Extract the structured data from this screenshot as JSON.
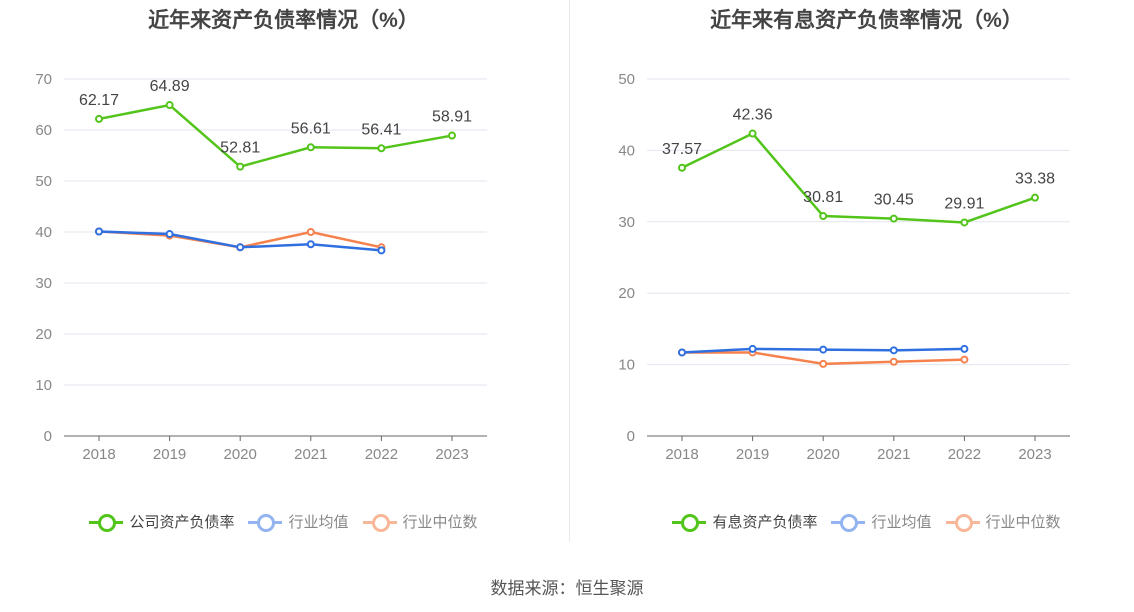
{
  "chart_data": [
    {
      "type": "line",
      "title": "近年来资产负债率情况（%）",
      "categories": [
        "2018",
        "2019",
        "2020",
        "2021",
        "2022",
        "2023"
      ],
      "ylim": [
        0,
        70
      ],
      "yticks": [
        0,
        10,
        20,
        30,
        40,
        50,
        60,
        70
      ],
      "grid": true,
      "legend": "bottom",
      "series": [
        {
          "name": "公司资产负债率",
          "color": "#52c41a",
          "values": [
            62.17,
            64.89,
            52.81,
            56.61,
            56.41,
            58.91
          ],
          "labels": true
        },
        {
          "name": "行业均值",
          "color": "#2f6fe0",
          "values": [
            40.1,
            39.6,
            37.0,
            37.6,
            36.4,
            null
          ]
        },
        {
          "name": "行业中位数",
          "color": "#f5814d",
          "values": [
            40.1,
            39.3,
            37.0,
            40.0,
            37.0,
            null
          ]
        }
      ]
    },
    {
      "type": "line",
      "title": "近年来有息资产负债率情况（%）",
      "categories": [
        "2018",
        "2019",
        "2020",
        "2021",
        "2022",
        "2023"
      ],
      "ylim": [
        0,
        50
      ],
      "yticks": [
        0,
        10,
        20,
        30,
        40,
        50
      ],
      "grid": true,
      "legend": "bottom",
      "series": [
        {
          "name": "有息资产负债率",
          "color": "#52c41a",
          "values": [
            37.57,
            42.36,
            30.81,
            30.45,
            29.91,
            33.38
          ],
          "labels": true
        },
        {
          "name": "行业均值",
          "color": "#2f6fe0",
          "values": [
            11.7,
            12.2,
            12.1,
            12.0,
            12.2,
            null
          ]
        },
        {
          "name": "行业中位数",
          "color": "#f5814d",
          "values": [
            11.7,
            11.7,
            10.1,
            10.4,
            10.7,
            null
          ]
        }
      ]
    }
  ],
  "source": "数据来源：恒生聚源"
}
